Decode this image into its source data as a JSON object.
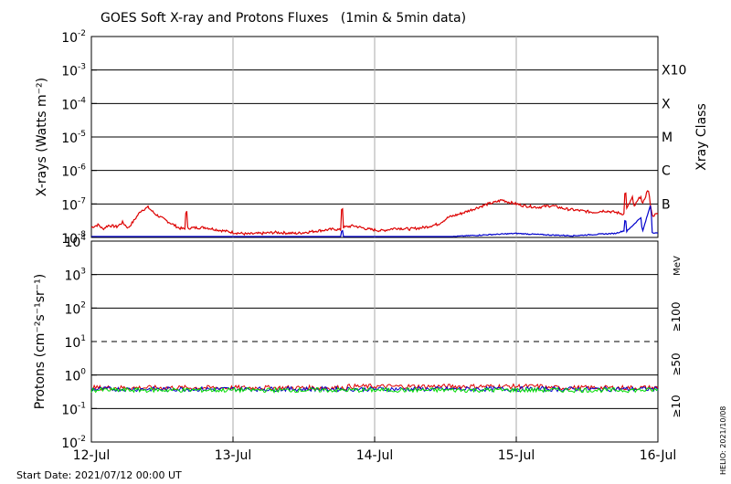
{
  "title": "GOES Soft X-ray and Protons Fluxes   (1min & 5min data)",
  "start_date": "Start Date: 2021/07/12 00:00 UT",
  "helio_stamp": "HELIO: 2021/10/08",
  "colors": {
    "xray_long": "#dd0000",
    "xray_short": "#0000cc",
    "proton_10": "#dd0000",
    "proton_50": "#0000cc",
    "proton_100": "#00dd00",
    "grid_major": "#000000",
    "grid_day": "#aaaaaa"
  },
  "chart_data": [
    {
      "type": "line",
      "panel": "xray",
      "ylabel": "X-rays (Watts m⁻²)",
      "yscale": "log",
      "ylim_exp": [
        -8,
        -2
      ],
      "y_ticks": [
        {
          "base": "10",
          "exp": "-8"
        },
        {
          "base": "10",
          "exp": "-7"
        },
        {
          "base": "10",
          "exp": "-6"
        },
        {
          "base": "10",
          "exp": "-5"
        },
        {
          "base": "10",
          "exp": "-4"
        },
        {
          "base": "10",
          "exp": "-3"
        },
        {
          "base": "10",
          "exp": "-2"
        }
      ],
      "right_axis_label": "Xray Class",
      "classes": [
        {
          "label": "X10",
          "exp": -3
        },
        {
          "label": "X",
          "exp": -4
        },
        {
          "label": "M",
          "exp": -5
        },
        {
          "label": "C",
          "exp": -6
        },
        {
          "label": "B",
          "exp": -7
        }
      ],
      "x_range_days": [
        0,
        4
      ],
      "series": [
        {
          "key": "long",
          "points": [
            [
              0,
              -7.7
            ],
            [
              0.05,
              -7.62
            ],
            [
              0.08,
              -7.75
            ],
            [
              0.12,
              -7.64
            ],
            [
              0.18,
              -7.68
            ],
            [
              0.22,
              -7.55
            ],
            [
              0.26,
              -7.72
            ],
            [
              0.3,
              -7.5
            ],
            [
              0.35,
              -7.2
            ],
            [
              0.4,
              -7.1
            ],
            [
              0.45,
              -7.3
            ],
            [
              0.55,
              -7.55
            ],
            [
              0.62,
              -7.72
            ],
            [
              0.66,
              -7.75
            ],
            [
              0.67,
              -7.0
            ],
            [
              0.68,
              -7.72
            ],
            [
              0.8,
              -7.7
            ],
            [
              0.9,
              -7.78
            ],
            [
              1.0,
              -7.85
            ],
            [
              1.1,
              -7.9
            ],
            [
              1.2,
              -7.88
            ],
            [
              1.3,
              -7.85
            ],
            [
              1.45,
              -7.88
            ],
            [
              1.6,
              -7.8
            ],
            [
              1.72,
              -7.75
            ],
            [
              1.76,
              -7.78
            ],
            [
              1.77,
              -6.85
            ],
            [
              1.78,
              -7.7
            ],
            [
              1.85,
              -7.65
            ],
            [
              1.95,
              -7.75
            ],
            [
              2.05,
              -7.8
            ],
            [
              2.15,
              -7.72
            ],
            [
              2.25,
              -7.75
            ],
            [
              2.35,
              -7.7
            ],
            [
              2.45,
              -7.6
            ],
            [
              2.52,
              -7.4
            ],
            [
              2.6,
              -7.3
            ],
            [
              2.7,
              -7.15
            ],
            [
              2.8,
              -7.0
            ],
            [
              2.85,
              -6.95
            ],
            [
              2.9,
              -6.88
            ],
            [
              2.95,
              -6.95
            ],
            [
              3.05,
              -7.05
            ],
            [
              3.15,
              -7.1
            ],
            [
              3.25,
              -7.05
            ],
            [
              3.35,
              -7.15
            ],
            [
              3.45,
              -7.2
            ],
            [
              3.55,
              -7.25
            ],
            [
              3.62,
              -7.2
            ],
            [
              3.7,
              -7.25
            ],
            [
              3.76,
              -7.3
            ],
            [
              3.77,
              -6.4
            ],
            [
              3.78,
              -7.15
            ],
            [
              3.82,
              -6.8
            ],
            [
              3.83,
              -7.1
            ],
            [
              3.88,
              -6.75
            ],
            [
              3.89,
              -7.05
            ],
            [
              3.93,
              -6.55
            ],
            [
              3.94,
              -6.8
            ],
            [
              3.96,
              -7.35
            ],
            [
              4.0,
              -7.3
            ]
          ]
        },
        {
          "key": "short",
          "points": [
            [
              0,
              -8.05
            ],
            [
              0.4,
              -8.02
            ],
            [
              0.8,
              -8.03
            ],
            [
              1.0,
              -8.05
            ],
            [
              1.3,
              -8.04
            ],
            [
              1.72,
              -8.04
            ],
            [
              1.76,
              -8.02
            ],
            [
              1.77,
              -7.7
            ],
            [
              1.78,
              -8.03
            ],
            [
              2.4,
              -8.04
            ],
            [
              2.52,
              -7.98
            ],
            [
              2.8,
              -7.92
            ],
            [
              3.0,
              -7.88
            ],
            [
              3.2,
              -7.92
            ],
            [
              3.4,
              -7.95
            ],
            [
              3.6,
              -7.9
            ],
            [
              3.7,
              -7.88
            ],
            [
              3.76,
              -7.8
            ],
            [
              3.77,
              -7.35
            ],
            [
              3.78,
              -7.82
            ],
            [
              3.88,
              -7.4
            ],
            [
              3.89,
              -7.85
            ],
            [
              3.95,
              -7.0
            ],
            [
              3.96,
              -7.85
            ],
            [
              4.0,
              -7.88
            ]
          ]
        }
      ]
    },
    {
      "type": "line",
      "panel": "protons",
      "ylabel": "Protons (cm⁻²s⁻¹sr⁻¹)",
      "yscale": "log",
      "ylim_exp": [
        -2,
        4
      ],
      "y_ticks": [
        {
          "base": "10",
          "exp": "-2"
        },
        {
          "base": "10",
          "exp": "-1"
        },
        {
          "base": "10",
          "exp": "0"
        },
        {
          "base": "10",
          "exp": "1"
        },
        {
          "base": "10",
          "exp": "2"
        },
        {
          "base": "10",
          "exp": "3"
        },
        {
          "base": "10",
          "exp": "4"
        }
      ],
      "threshold_exp": 1,
      "right_labels": [
        "MeV",
        "≥100",
        "≥50",
        "≥10"
      ],
      "x_ticks": [
        "12-Jul",
        "13-Jul",
        "14-Jul",
        "15-Jul",
        "16-Jul"
      ],
      "x_range_days": [
        0,
        4
      ],
      "series": [
        {
          "key": "ge10",
          "level_exp": -0.38
        },
        {
          "key": "ge50",
          "level_exp": -0.42
        },
        {
          "key": "ge100",
          "level_exp": -0.45
        }
      ]
    }
  ]
}
